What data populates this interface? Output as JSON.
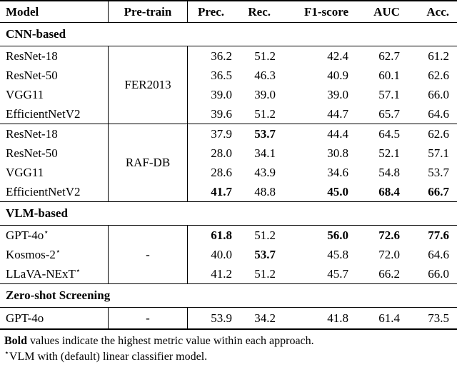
{
  "header": {
    "model": "Model",
    "pretrain": "Pre-train",
    "metrics": [
      "Prec.",
      "Rec.",
      "F1-score",
      "AUC",
      "Acc."
    ]
  },
  "sections": {
    "cnn": {
      "title": "CNN-based"
    },
    "vlm": {
      "title": "VLM-based"
    },
    "zeroshot": {
      "title": "Zero-shot Screening"
    }
  },
  "groups": {
    "fer": {
      "pretrain": "FER2013",
      "rows": [
        {
          "model": "ResNet-18",
          "values": [
            "36.2",
            "51.2",
            "42.4",
            "62.7",
            "61.2"
          ],
          "bold": [
            false,
            false,
            false,
            false,
            false
          ]
        },
        {
          "model": "ResNet-50",
          "values": [
            "36.5",
            "46.3",
            "40.9",
            "60.1",
            "62.6"
          ],
          "bold": [
            false,
            false,
            false,
            false,
            false
          ]
        },
        {
          "model": "VGG11",
          "values": [
            "39.0",
            "39.0",
            "39.0",
            "57.1",
            "66.0"
          ],
          "bold": [
            false,
            false,
            false,
            false,
            false
          ]
        },
        {
          "model": "EfficientNetV2",
          "values": [
            "39.6",
            "51.2",
            "44.7",
            "65.7",
            "64.6"
          ],
          "bold": [
            false,
            false,
            false,
            false,
            false
          ]
        }
      ]
    },
    "raf": {
      "pretrain": "RAF-DB",
      "rows": [
        {
          "model": "ResNet-18",
          "values": [
            "37.9",
            "53.7",
            "44.4",
            "64.5",
            "62.6"
          ],
          "bold": [
            false,
            true,
            false,
            false,
            false
          ]
        },
        {
          "model": "ResNet-50",
          "values": [
            "28.0",
            "34.1",
            "30.8",
            "52.1",
            "57.1"
          ],
          "bold": [
            false,
            false,
            false,
            false,
            false
          ]
        },
        {
          "model": "VGG11",
          "values": [
            "28.6",
            "43.9",
            "34.6",
            "54.8",
            "53.7"
          ],
          "bold": [
            false,
            false,
            false,
            false,
            false
          ]
        },
        {
          "model": "EfficientNetV2",
          "values": [
            "41.7",
            "48.8",
            "45.0",
            "68.4",
            "66.7"
          ],
          "bold": [
            true,
            false,
            true,
            true,
            true
          ]
        }
      ]
    },
    "vlm": {
      "pretrain": "-",
      "rows": [
        {
          "model": "GPT-4o",
          "sup": "⋆",
          "values": [
            "61.8",
            "51.2",
            "56.0",
            "72.6",
            "77.6"
          ],
          "bold": [
            true,
            false,
            true,
            true,
            true
          ]
        },
        {
          "model": "Kosmos-2",
          "sup": "⋆",
          "values": [
            "40.0",
            "53.7",
            "45.8",
            "72.0",
            "64.6"
          ],
          "bold": [
            false,
            true,
            false,
            false,
            false
          ]
        },
        {
          "model": "LLaVA-NExT",
          "sup": "⋆",
          "values": [
            "41.2",
            "51.2",
            "45.7",
            "66.2",
            "66.0"
          ],
          "bold": [
            false,
            false,
            false,
            false,
            false
          ]
        }
      ]
    },
    "zeroshot": {
      "pretrain": "-",
      "rows": [
        {
          "model": "GPT-4o",
          "values": [
            "53.9",
            "34.2",
            "41.8",
            "61.4",
            "73.5"
          ],
          "bold": [
            false,
            false,
            false,
            false,
            false
          ]
        }
      ]
    }
  },
  "footnotes": {
    "bold_term": "Bold",
    "line1_rest": " values indicate the highest metric value within each approach.",
    "star": "⋆",
    "line2_text": "VLM with (default) linear classifier model."
  }
}
